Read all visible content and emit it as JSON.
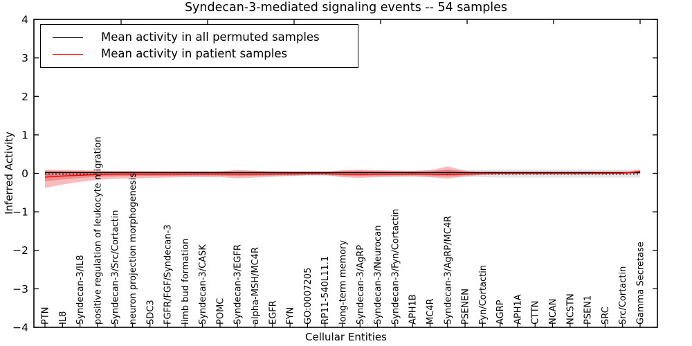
{
  "title": "Syndecan-3-mediated signaling events -- 54 samples",
  "chart_data": {
    "type": "line",
    "title": "Syndecan-3-mediated signaling events -- 54 samples",
    "xlabel": "Cellular Entities",
    "ylabel": "Inferred Activity",
    "ylim": [
      -4,
      4
    ],
    "ytick_labels": [
      "−4",
      "−3",
      "−2",
      "−1",
      "0",
      "1",
      "2",
      "3",
      "4"
    ],
    "ytick_values": [
      -4,
      -3,
      -2,
      -1,
      0,
      1,
      2,
      3,
      4
    ],
    "grid": false,
    "legend_position": "upper left",
    "categories": [
      "PTN",
      "IL8",
      "Syndecan-3/IL8",
      "positive regulation of leukocyte migration",
      "Syndecan-3/Src/Cortactin",
      "neuron projection morphogenesis",
      "SDC3",
      "FGFR/FGF/Syndecan-3",
      "limb bud formation",
      "Syndecan-3/CASK",
      "POMC",
      "Syndecan-3/EGFR",
      "alpha-MSH/MC4R",
      "EGFR",
      "FYN",
      "GO:0007205",
      "RP11-540L11.1",
      "long-term memory",
      "Syndecan-3/AgRP",
      "Syndecan-3/Neurocan",
      "Syndecan-3/Fyn/Cortactin",
      "APH1B",
      "MC4R",
      "Syndecan-3/AgRP/MC4R",
      "PSENEN",
      "Fyn/Cortactin",
      "AGRP",
      "APH1A",
      "CTTN",
      "NCAN",
      "NCSTN",
      "PSEN1",
      "SRC",
      "Src/Cortactin",
      "Gamma Secretase"
    ],
    "series": [
      {
        "name": "Mean activity in all permuted samples",
        "color": "#000000",
        "values": [
          0.02,
          0.02,
          0.02,
          0.02,
          0.02,
          0.02,
          0.02,
          0.02,
          0.02,
          0.02,
          0.02,
          0.02,
          0.02,
          0.02,
          0.02,
          0.02,
          0.02,
          0.02,
          0.02,
          0.02,
          0.02,
          0.02,
          0.02,
          0.02,
          0.02,
          0.02,
          0.02,
          0.02,
          0.02,
          0.02,
          0.02,
          0.02,
          0.02,
          0.02,
          0.02
        ]
      },
      {
        "name": "Mean activity in patient samples",
        "color": "#ff0000",
        "values": [
          -0.1,
          -0.07,
          -0.05,
          -0.03,
          -0.02,
          -0.02,
          -0.02,
          -0.02,
          -0.02,
          -0.015,
          -0.015,
          -0.02,
          -0.02,
          -0.015,
          -0.01,
          -0.01,
          -0.01,
          -0.02,
          -0.025,
          -0.02,
          -0.02,
          -0.015,
          -0.02,
          -0.03,
          -0.015,
          -0.01,
          -0.005,
          -0.005,
          -0.005,
          -0.005,
          -0.005,
          -0.005,
          0.0,
          0.005,
          0.05
        ]
      }
    ],
    "bands": [
      {
        "name": "permuted-sample-range",
        "color": "rgba(0,0,0,0.10)",
        "top": [
          0.06,
          0.06,
          0.06,
          0.06,
          0.06,
          0.06,
          0.06,
          0.06,
          0.06,
          0.06,
          0.06,
          0.06,
          0.06,
          0.06,
          0.06,
          0.06,
          0.06,
          0.07,
          0.07,
          0.07,
          0.07,
          0.07,
          0.08,
          0.08,
          0.08,
          0.09,
          0.1,
          0.1,
          0.1,
          0.1,
          0.1,
          0.1,
          0.1,
          0.1,
          0.1
        ],
        "bottom": [
          -0.07,
          -0.07,
          -0.07,
          -0.07,
          -0.07,
          -0.07,
          -0.07,
          -0.07,
          -0.07,
          -0.07,
          -0.07,
          -0.07,
          -0.07,
          -0.07,
          -0.07,
          -0.07,
          -0.07,
          -0.08,
          -0.08,
          -0.08,
          -0.08,
          -0.08,
          -0.09,
          -0.09,
          -0.09,
          -0.1,
          -0.11,
          -0.11,
          -0.11,
          -0.11,
          -0.11,
          -0.11,
          -0.11,
          -0.11,
          -0.11
        ]
      },
      {
        "name": "patient-sample-range",
        "color": "rgba(228,38,38,0.30)",
        "top": [
          0.1,
          0.09,
          0.08,
          0.07,
          0.06,
          0.06,
          0.055,
          0.05,
          0.05,
          0.05,
          0.05,
          0.09,
          0.07,
          0.05,
          0.04,
          0.035,
          0.03,
          0.08,
          0.1,
          0.08,
          0.07,
          0.06,
          0.08,
          0.18,
          0.07,
          0.03,
          0.02,
          0.015,
          0.015,
          0.015,
          0.015,
          0.015,
          0.015,
          0.02,
          0.1
        ],
        "bottom": [
          -0.38,
          -0.29,
          -0.22,
          -0.17,
          -0.14,
          -0.13,
          -0.12,
          -0.11,
          -0.1,
          -0.1,
          -0.1,
          -0.13,
          -0.11,
          -0.09,
          -0.07,
          -0.045,
          -0.04,
          -0.1,
          -0.12,
          -0.1,
          -0.09,
          -0.08,
          -0.1,
          -0.14,
          -0.08,
          -0.035,
          -0.025,
          -0.02,
          -0.02,
          -0.02,
          -0.02,
          -0.02,
          -0.02,
          -0.02,
          -0.01
        ]
      }
    ],
    "reference_line": {
      "value": -0.02,
      "style": "dotted",
      "color": "#000000"
    },
    "legend": [
      {
        "label": "Mean activity in all permuted samples",
        "color": "#000000"
      },
      {
        "label": "Mean activity in patient samples",
        "color": "#ff0000"
      }
    ]
  }
}
